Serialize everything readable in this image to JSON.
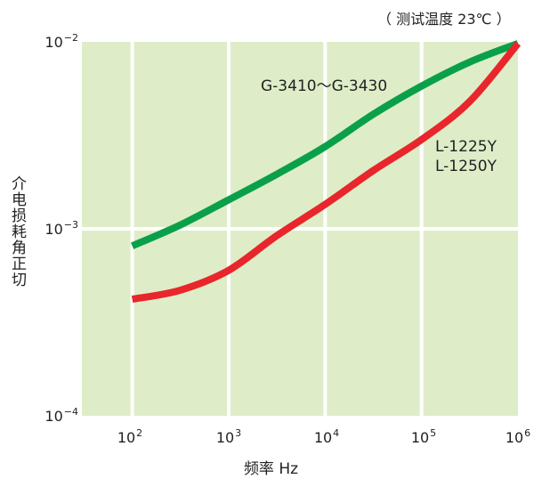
{
  "note": "（ 测试温度 23℃ ）",
  "chart_data": {
    "type": "line",
    "xlabel": "频率 Hz",
    "ylabel": "介电损耗角正切",
    "xscale": "log",
    "yscale": "log",
    "xlim": [
      30,
      1000000
    ],
    "ylim": [
      0.0001,
      0.01
    ],
    "grid": true,
    "x_ticks": [
      {
        "base": "10",
        "exp": "2"
      },
      {
        "base": "10",
        "exp": "3"
      },
      {
        "base": "10",
        "exp": "4"
      },
      {
        "base": "10",
        "exp": "5"
      },
      {
        "base": "10",
        "exp": "6"
      }
    ],
    "y_ticks": [
      {
        "base": "10",
        "exp": "−2"
      },
      {
        "base": "10",
        "exp": "−3"
      },
      {
        "base": "10",
        "exp": "−4"
      }
    ],
    "colors": {
      "plot_bg": "#deedc8",
      "grid": "#ffffff",
      "green": "#0aa04a",
      "red": "#e8262b"
    },
    "series": [
      {
        "label_lines": [
          "G-3410～G-3430"
        ],
        "color": "#0aa04a",
        "x": [
          100,
          316,
          1000,
          3162,
          10000,
          31623,
          100000,
          316228,
          1000000
        ],
        "y": [
          0.00081,
          0.00105,
          0.00143,
          0.00196,
          0.00275,
          0.0041,
          0.0058,
          0.0078,
          0.0098
        ]
      },
      {
        "label_lines": [
          "L-1225Y",
          "L-1250Y"
        ],
        "color": "#e8262b",
        "x": [
          100,
          316,
          1000,
          3162,
          10000,
          31623,
          100000,
          316228,
          1000000
        ],
        "y": [
          0.00042,
          0.00047,
          0.0006,
          0.00092,
          0.00135,
          0.00205,
          0.003,
          0.0048,
          0.0098
        ]
      }
    ]
  }
}
